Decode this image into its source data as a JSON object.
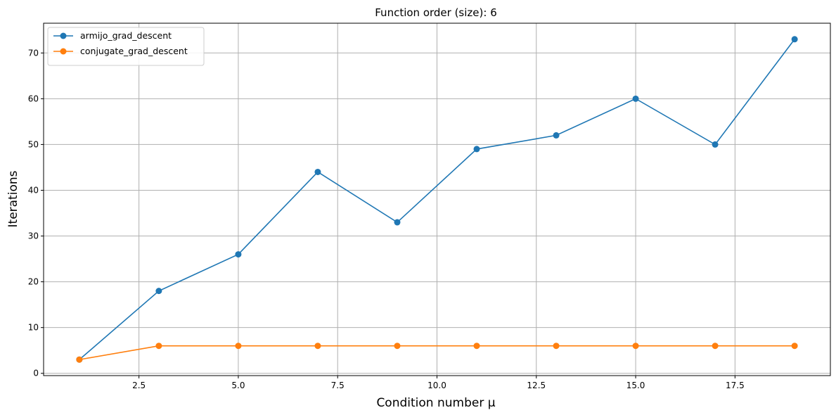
{
  "chart_data": {
    "type": "line",
    "title": "Function order (size): 6",
    "xlabel": "Condition number μ",
    "ylabel": "Iterations",
    "xlim": [
      0.1,
      19.9
    ],
    "ylim": [
      -0.5,
      76.5
    ],
    "x_ticks": [
      2.5,
      5.0,
      7.5,
      10.0,
      12.5,
      15.0,
      17.5
    ],
    "x_tick_labels": [
      "2.5",
      "5.0",
      "7.5",
      "10.0",
      "12.5",
      "15.0",
      "17.5"
    ],
    "y_ticks": [
      0,
      10,
      20,
      30,
      40,
      50,
      60,
      70
    ],
    "y_tick_labels": [
      "0",
      "10",
      "20",
      "30",
      "40",
      "50",
      "60",
      "70"
    ],
    "grid": true,
    "legend_position": "top-left",
    "x": [
      1,
      3,
      5,
      7,
      9,
      11,
      13,
      15,
      17,
      19
    ],
    "series": [
      {
        "name": "armijo_grad_descent",
        "color": "#1f77b4",
        "values": [
          3,
          18,
          26,
          44,
          33,
          49,
          52,
          60,
          50,
          73
        ]
      },
      {
        "name": "conjugate_grad_descent",
        "color": "#ff7f0e",
        "values": [
          3,
          6,
          6,
          6,
          6,
          6,
          6,
          6,
          6,
          6
        ]
      }
    ]
  }
}
